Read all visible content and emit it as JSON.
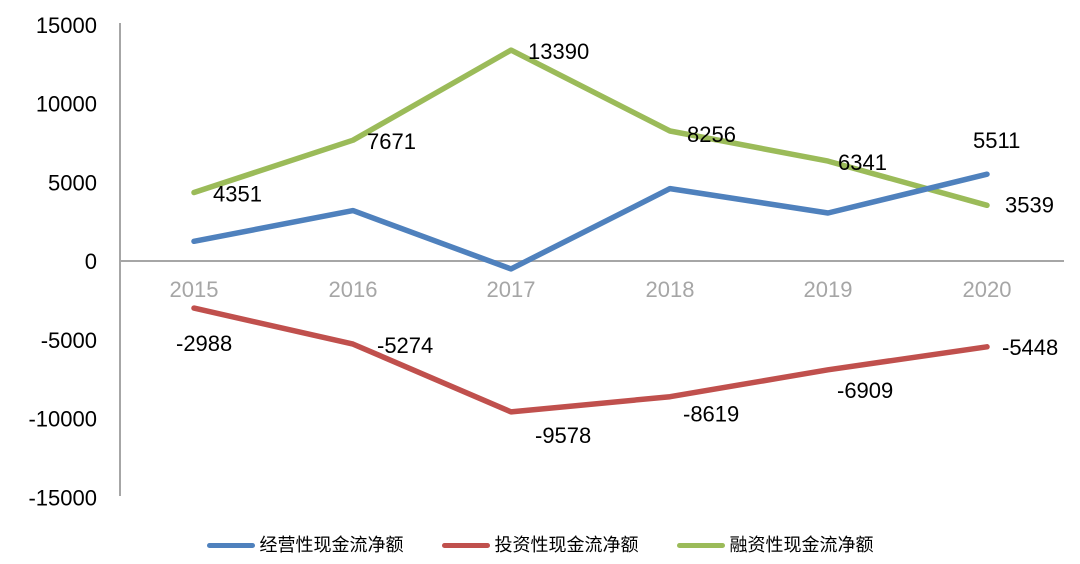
{
  "chart_data": {
    "type": "line",
    "categories": [
      "2015",
      "2016",
      "2017",
      "2018",
      "2019",
      "2020"
    ],
    "series": [
      {
        "name": "经营性现金流净额",
        "color": "#4F81BD",
        "values": [
          1250,
          3200,
          -500,
          4600,
          3050,
          5511
        ],
        "data_labels": [
          "",
          "",
          "",
          "",
          "",
          "5511"
        ]
      },
      {
        "name": "投资性现金流净额",
        "color": "#C0504D",
        "values": [
          -2988,
          -5274,
          -9578,
          -8619,
          -6909,
          -5448
        ],
        "data_labels": [
          "-2988",
          "-5274",
          "-9578",
          "-8619",
          "-6909",
          "-5448"
        ]
      },
      {
        "name": "融资性现金流净额",
        "color": "#9BBB59",
        "values": [
          4351,
          7671,
          13390,
          8256,
          6341,
          3539
        ],
        "data_labels": [
          "4351",
          "7671",
          "13390",
          "8256",
          "6341",
          "3539"
        ]
      }
    ],
    "y_ticks": [
      15000,
      10000,
      5000,
      0,
      -5000,
      -10000,
      -15000
    ],
    "ylim": [
      -15000,
      15000
    ],
    "grid": false,
    "legend_position": "bottom",
    "axis_color": "#A6A6A6",
    "x_label_color": "#A6A6A6",
    "tick_label_color": "#000000",
    "data_label_color": "#000000"
  }
}
